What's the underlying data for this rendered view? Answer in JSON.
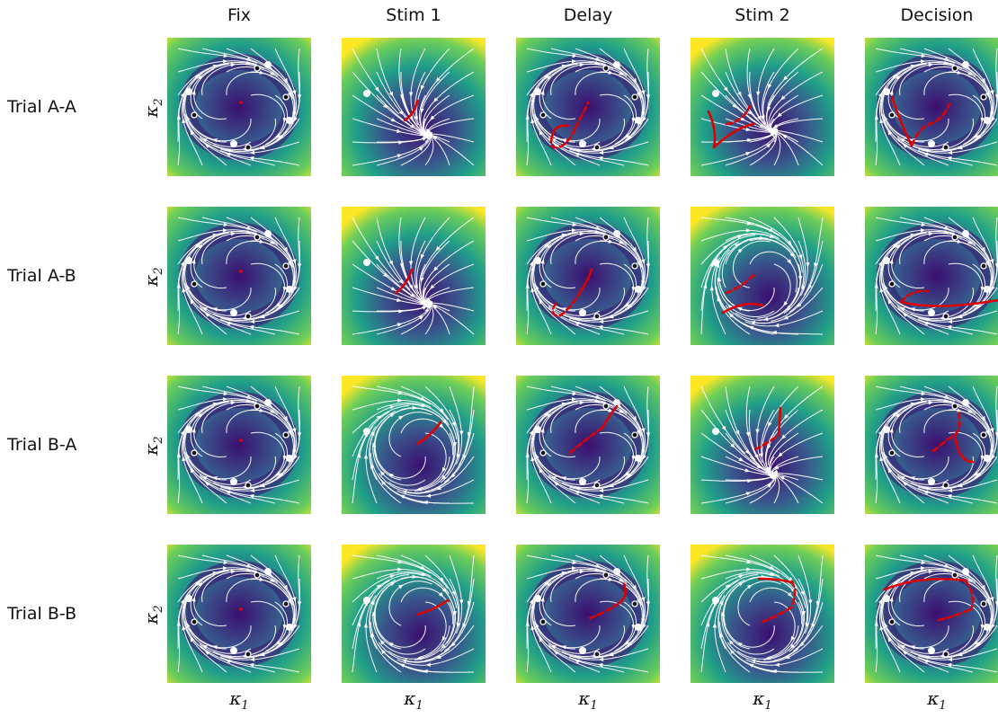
{
  "columns": [
    "Fix",
    "Stim 1",
    "Delay",
    "Stim 2",
    "Decision"
  ],
  "rows": [
    "Trial A-A",
    "Trial A-B",
    "Trial B-A",
    "Trial B-B"
  ],
  "axis_labels": {
    "y_symbol": "κ",
    "y_sub": "2",
    "x_symbol": "κ",
    "x_sub": "1"
  },
  "colors": {
    "background_low": "#3b0f70",
    "background_high": "#fde725",
    "field_lines": "#ffffff",
    "trajectory": "#e00000"
  }
}
